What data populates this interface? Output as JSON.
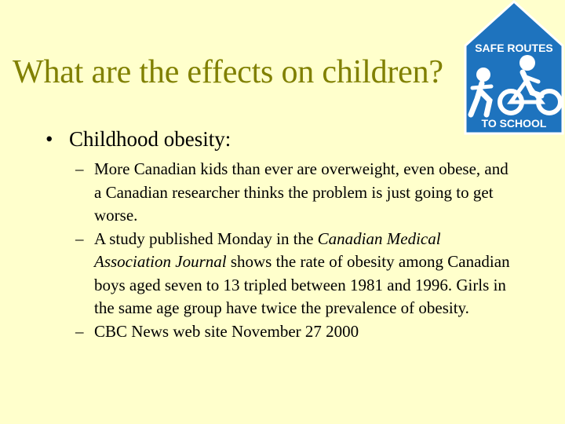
{
  "slide": {
    "title": "What are the effects on children?",
    "bullet": {
      "symbol": "•",
      "text": "Childhood obesity:"
    },
    "sub_bullets": [
      {
        "dash": "–",
        "text": "More Canadian kids than ever are overweight, even obese, and a Canadian researcher thinks the problem is just going to get worse."
      },
      {
        "dash": "–",
        "pre": "A study published Monday in the ",
        "italic": "Canadian Medical Association Journal",
        "post": " shows the rate of obesity among Canadian boys aged seven to 13 tripled between 1981 and 1996. Girls in the same age group have twice the prevalence of obesity."
      },
      {
        "dash": "–",
        "text": "CBC News web site November 27 2000"
      }
    ]
  },
  "logo": {
    "top_text": "SAFE ROUTES",
    "bottom_text": "TO SCHOOL",
    "colors": {
      "sign": "#1e73be",
      "figure": "#ffffff"
    }
  },
  "colors": {
    "background": "#ffffcc",
    "title": "#808000",
    "text": "#000000"
  }
}
